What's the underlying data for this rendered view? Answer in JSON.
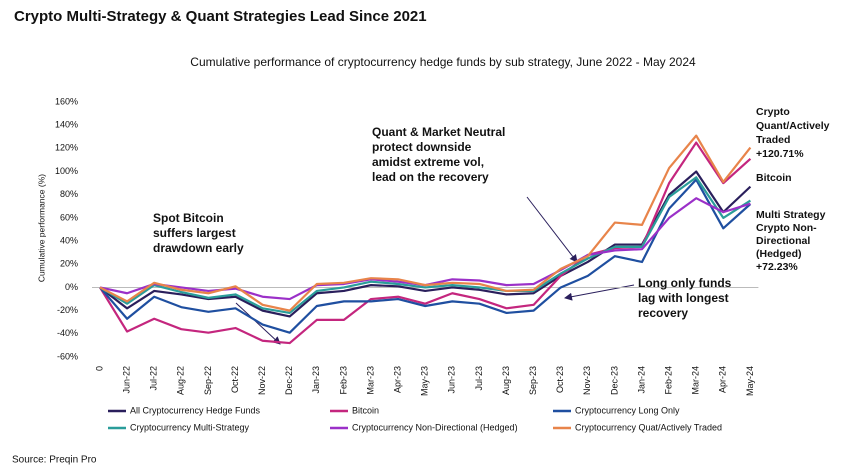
{
  "header": {
    "title": "Crypto Multi-Strategy & Quant Strategies Lead Since 2021"
  },
  "chart_data": {
    "type": "line",
    "title": "Cumulative performance of cryptocurrency hedge funds by sub strategy, June 2022 - May 2024",
    "y_label": "Cumulative performance (%)",
    "categories": [
      "0",
      "Jun-22",
      "Jul-22",
      "Aug-22",
      "Sep-22",
      "Oct-22",
      "Nov-22",
      "Dec-22",
      "Jan-23",
      "Feb-23",
      "Mar-23",
      "Apr-23",
      "May-23",
      "Jun-23",
      "Jul-23",
      "Aug-23",
      "Sep-23",
      "Oct-23",
      "Nov-23",
      "Dec-23",
      "Jan-24",
      "Feb-24",
      "Mar-24",
      "Apr-24",
      "May-24"
    ],
    "series": [
      {
        "name": "All Cryptocurrency Hedge Funds",
        "color": "#2a1f5c",
        "values": [
          0,
          -18,
          -3,
          -6,
          -10,
          -8,
          -20,
          -25,
          -5,
          -3,
          2,
          1,
          -3,
          0,
          -2,
          -6,
          -5,
          10,
          22,
          37,
          37,
          80,
          100,
          65,
          87
        ]
      },
      {
        "name": "Bitcoin",
        "color": "#c4267e",
        "values": [
          0,
          -38,
          -27,
          -36,
          -39,
          -35,
          -46,
          -48,
          -28,
          -28,
          -10,
          -8,
          -14,
          -5,
          -10,
          -18,
          -15,
          10,
          28,
          34,
          35,
          90,
          125,
          90,
          111
        ]
      },
      {
        "name": "Cryptocurrency  Long Only",
        "color": "#1f4fa0",
        "values": [
          0,
          -27,
          -8,
          -17,
          -21,
          -18,
          -32,
          -39,
          -16,
          -12,
          -12,
          -10,
          -16,
          -12,
          -14,
          -22,
          -20,
          0,
          10,
          27,
          22,
          68,
          93,
          51,
          72
        ]
      },
      {
        "name": "Cryptocurrency Multi-Strategy",
        "color": "#2a9d9a",
        "values": [
          0,
          -14,
          2,
          -4,
          -9,
          -6,
          -18,
          -22,
          -3,
          0,
          5,
          3,
          0,
          2,
          0,
          -3,
          -3,
          12,
          25,
          35,
          35,
          78,
          95,
          60,
          75
        ]
      },
      {
        "name": "Cryptocurrency Non-Directional (Hedged)",
        "color": "#9b30c8",
        "values": [
          0,
          -5,
          3,
          0,
          -3,
          -1,
          -8,
          -10,
          2,
          3,
          7,
          5,
          2,
          7,
          6,
          2,
          3,
          15,
          28,
          32,
          33,
          60,
          77,
          65,
          72.23
        ]
      },
      {
        "name": "Cryptocurrency Quat/Actively Traded",
        "color": "#e8844a",
        "values": [
          0,
          -12,
          4,
          -2,
          -5,
          1,
          -15,
          -20,
          3,
          4,
          8,
          7,
          2,
          4,
          3,
          -3,
          -2,
          16,
          27,
          56,
          54,
          103,
          131,
          91,
          120.71
        ]
      }
    ],
    "ylim": [
      -60,
      160
    ],
    "yticks": [
      {
        "value": -60,
        "label": "-60%"
      },
      {
        "value": -40,
        "label": "-40%"
      },
      {
        "value": -20,
        "label": "-20%"
      },
      {
        "value": 0,
        "label": "0%"
      },
      {
        "value": 20,
        "label": "20%"
      },
      {
        "value": 40,
        "label": "40%"
      },
      {
        "value": 60,
        "label": "60%"
      },
      {
        "value": 80,
        "label": "80%"
      },
      {
        "value": 100,
        "label": "100%"
      },
      {
        "value": 120,
        "label": "120%"
      },
      {
        "value": 140,
        "label": "140%"
      },
      {
        "value": 160,
        "label": "160%"
      }
    ],
    "grid": false,
    "annotations": [
      {
        "lines": [
          "Quant & Market Neutral",
          "protect downside",
          "amidst extreme vol,",
          "lead on the recovery"
        ]
      },
      {
        "lines": [
          "Spot Bitcoin",
          "suffers largest",
          "drawdown early"
        ]
      },
      {
        "lines": [
          "Long only funds",
          "lag with longest",
          "recovery"
        ]
      },
      {
        "lines": [
          "Crypto",
          "Quant/Actively",
          "Traded",
          "+120.71%"
        ]
      },
      {
        "lines": [
          "Bitcoin"
        ]
      },
      {
        "lines": [
          "Multi Strategy"
        ]
      },
      {
        "lines": [
          "Crypto Non-",
          "Directional",
          "(Hedged)",
          "+72.23%"
        ]
      }
    ]
  },
  "footer": {
    "source": "Source: Preqin Pro"
  }
}
